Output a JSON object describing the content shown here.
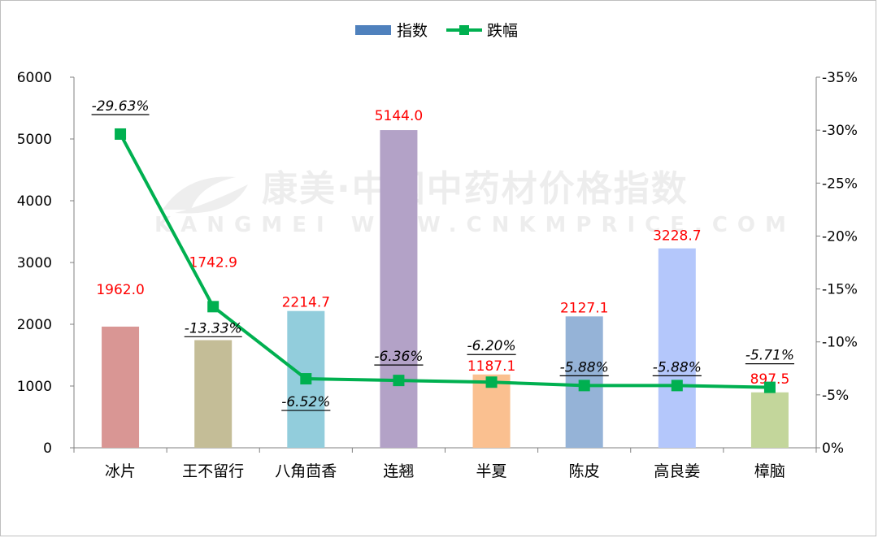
{
  "chart_data": {
    "type": "bar",
    "categories": [
      "冰片",
      "王不留行",
      "八角茴香",
      "连翘",
      "半夏",
      "陈皮",
      "高良姜",
      "樟脑"
    ],
    "series": [
      {
        "name": "指数",
        "type": "bar",
        "axis": "left",
        "values": [
          1962.0,
          1742.9,
          2214.7,
          5144.0,
          1187.1,
          2127.1,
          3228.7,
          897.5
        ],
        "labels": [
          "1962.0",
          "1742.9",
          "2214.7",
          "5144.0",
          "1187.1",
          "2127.1",
          "3228.7",
          "897.5"
        ],
        "colors": [
          "#d99694",
          "#c4bd97",
          "#92cddc",
          "#b3a2c7",
          "#fac090",
          "#95b3d7",
          "#b4c7fb",
          "#c3d69b"
        ]
      },
      {
        "name": "跌幅",
        "type": "line",
        "axis": "right",
        "values": [
          -29.63,
          -13.33,
          -6.52,
          -6.36,
          -6.2,
          -5.88,
          -5.88,
          -5.71
        ],
        "labels": [
          "-29.63%",
          "-13.33%",
          "-6.52%",
          "-6.36%",
          "-6.20%",
          "-5.88%",
          "-5.88%",
          "-5.71%"
        ],
        "color": "#00b050"
      }
    ],
    "ylim": [
      0,
      6000
    ],
    "yticks": [
      "0",
      "1000",
      "2000",
      "3000",
      "4000",
      "5000",
      "6000"
    ],
    "y2lim": [
      0,
      -35
    ],
    "y2ticks": [
      "0%",
      "-5%",
      "-10%",
      "-15%",
      "-20%",
      "-25%",
      "-30%",
      "-35%"
    ],
    "grid": false,
    "legend": "top-center"
  },
  "legend": {
    "bar_label": "指数",
    "line_label": "跌幅"
  },
  "watermark": {
    "line1": "康美·中国中药材价格指数",
    "line2": "KANGMEI WWW.CNKMPRICE.COM"
  }
}
